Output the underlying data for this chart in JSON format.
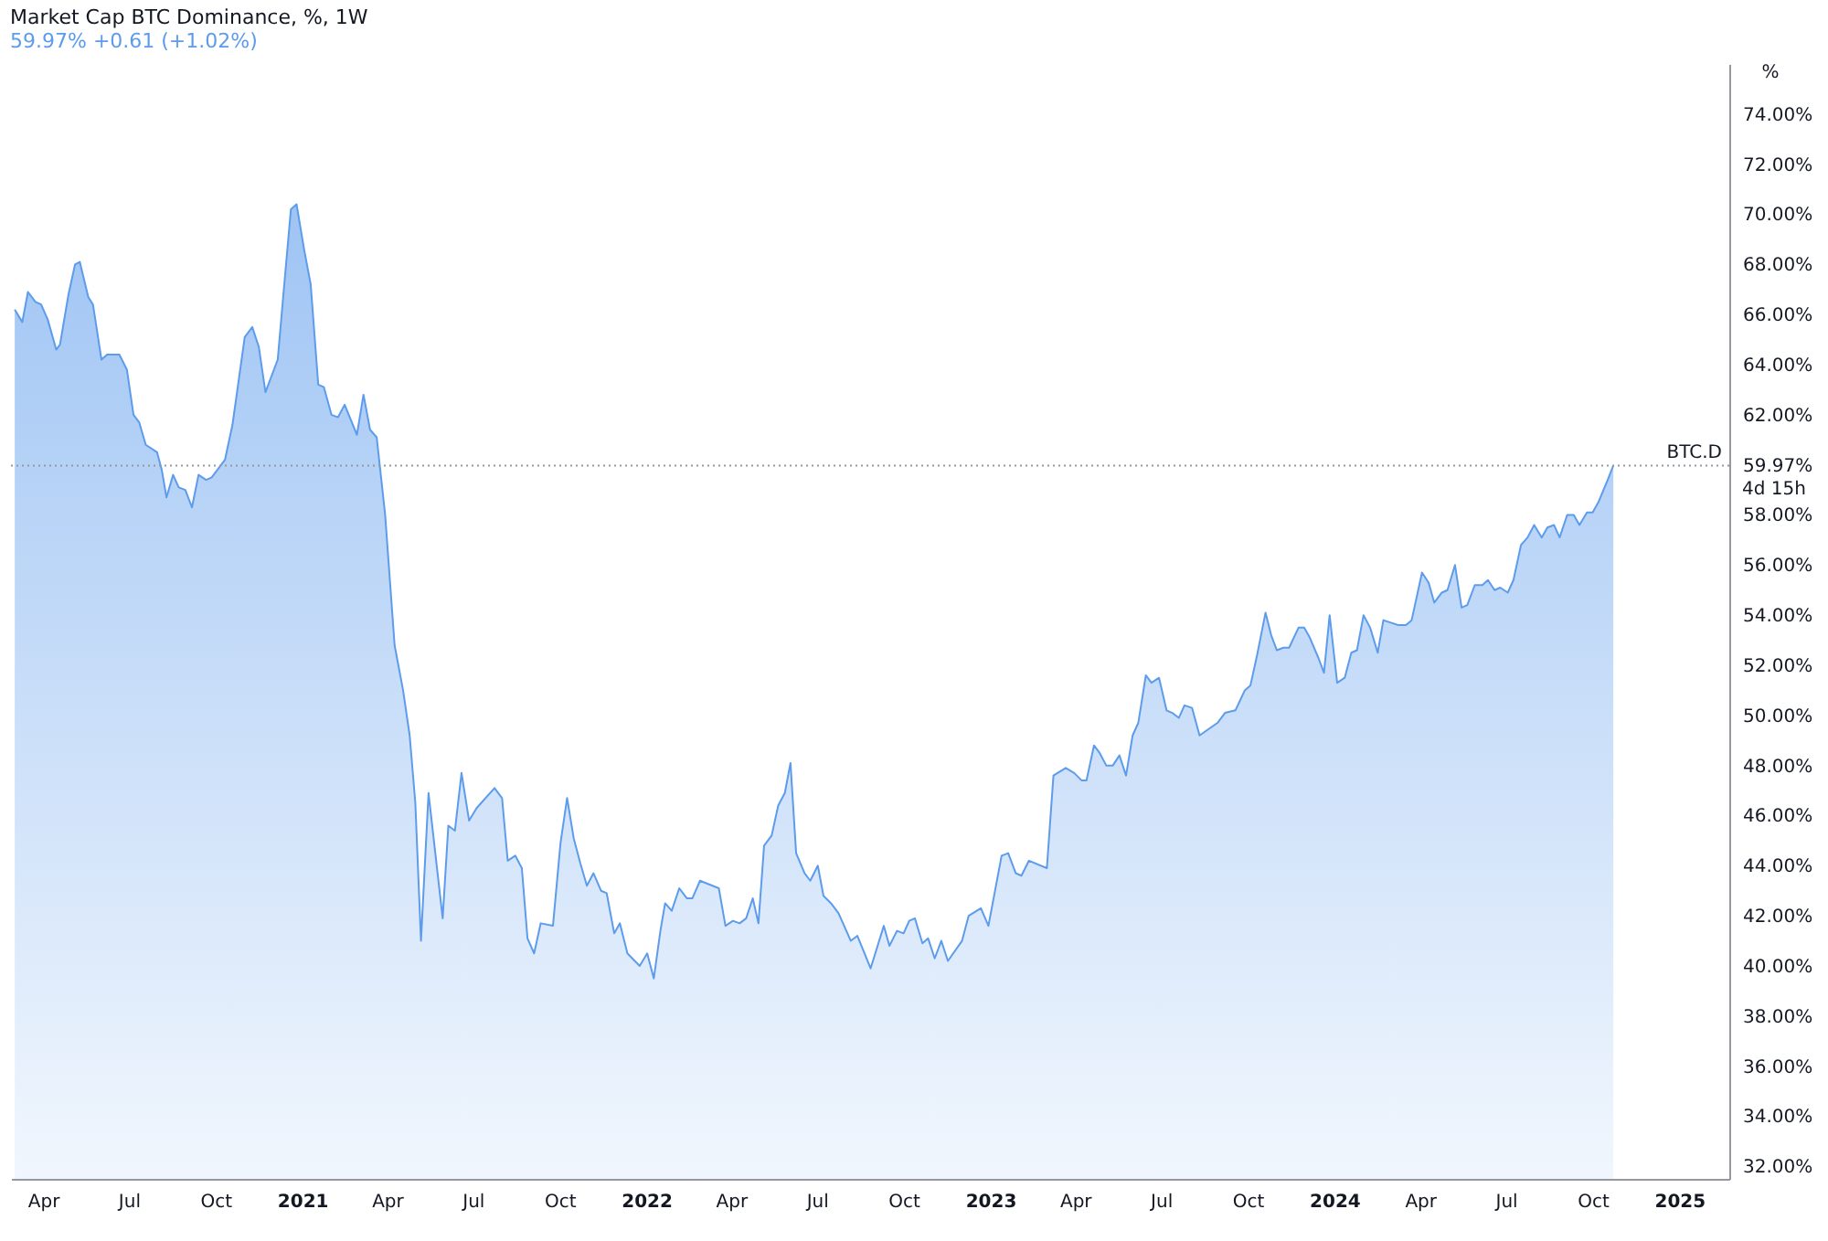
{
  "chart_data": {
    "type": "area",
    "title": "Market Cap BTC Dominance, %, 1W",
    "subtitle": "59.97% +0.61 (+1.02%)",
    "ylabel": "%",
    "x": [
      "2020-03-02",
      "2020-03-10",
      "2020-03-16",
      "2020-03-24",
      "2020-03-30",
      "2020-04-06",
      "2020-04-15",
      "2020-04-19",
      "2020-04-28",
      "2020-05-05",
      "2020-05-10",
      "2020-05-19",
      "2020-05-24",
      "2020-06-02",
      "2020-06-08",
      "2020-06-21",
      "2020-06-29",
      "2020-07-06",
      "2020-07-12",
      "2020-07-19",
      "2020-07-31",
      "2020-08-05",
      "2020-08-10",
      "2020-08-17",
      "2020-08-23",
      "2020-08-30",
      "2020-09-06",
      "2020-09-13",
      "2020-09-21",
      "2020-09-27",
      "2020-10-11",
      "2020-10-19",
      "2020-11-01",
      "2020-11-09",
      "2020-11-16",
      "2020-11-23",
      "2020-12-06",
      "2020-12-12",
      "2020-12-20",
      "2020-12-26",
      "2021-01-03",
      "2021-01-10",
      "2021-01-18",
      "2021-01-24",
      "2021-02-01",
      "2021-02-08",
      "2021-02-15",
      "2021-02-28",
      "2021-03-07",
      "2021-03-14",
      "2021-03-21",
      "2021-03-30",
      "2021-04-09",
      "2021-04-18",
      "2021-04-25",
      "2021-05-01",
      "2021-05-07",
      "2021-05-15",
      "2021-05-30",
      "2021-06-05",
      "2021-06-12",
      "2021-06-19",
      "2021-06-27",
      "2021-07-05",
      "2021-07-24",
      "2021-08-01",
      "2021-08-07",
      "2021-08-15",
      "2021-08-22",
      "2021-08-28",
      "2021-09-04",
      "2021-09-11",
      "2021-09-24",
      "2021-10-02",
      "2021-10-09",
      "2021-10-16",
      "2021-10-23",
      "2021-10-30",
      "2021-11-06",
      "2021-11-14",
      "2021-11-20",
      "2021-11-28",
      "2021-12-04",
      "2021-12-12",
      "2021-12-25",
      "2022-01-02",
      "2022-01-09",
      "2022-01-16",
      "2022-01-21",
      "2022-01-28",
      "2022-02-05",
      "2022-02-13",
      "2022-02-19",
      "2022-02-27",
      "2022-03-19",
      "2022-03-26",
      "2022-04-03",
      "2022-04-10",
      "2022-04-17",
      "2022-04-24",
      "2022-04-30",
      "2022-05-06",
      "2022-05-14",
      "2022-05-21",
      "2022-05-28",
      "2022-06-03",
      "2022-06-09",
      "2022-06-18",
      "2022-06-24",
      "2022-07-02",
      "2022-07-08",
      "2022-07-16",
      "2022-07-24",
      "2022-08-06",
      "2022-08-13",
      "2022-08-27",
      "2022-09-10",
      "2022-09-16",
      "2022-09-24",
      "2022-10-01",
      "2022-10-07",
      "2022-10-13",
      "2022-10-21",
      "2022-10-27",
      "2022-11-03",
      "2022-11-10",
      "2022-11-17",
      "2022-12-02",
      "2022-12-09",
      "2022-12-22",
      "2022-12-30",
      "2023-01-13",
      "2023-01-20",
      "2023-01-28",
      "2023-02-03",
      "2023-02-11",
      "2023-03-02",
      "2023-03-09",
      "2023-03-22",
      "2023-03-31",
      "2023-04-08",
      "2023-04-13",
      "2023-04-21",
      "2023-04-27",
      "2023-05-04",
      "2023-05-11",
      "2023-05-18",
      "2023-05-25",
      "2023-06-01",
      "2023-06-07",
      "2023-06-15",
      "2023-06-21",
      "2023-06-29",
      "2023-07-07",
      "2023-07-13",
      "2023-07-20",
      "2023-07-26",
      "2023-08-03",
      "2023-08-11",
      "2023-08-30",
      "2023-09-07",
      "2023-09-18",
      "2023-09-28",
      "2023-10-04",
      "2023-10-11",
      "2023-10-20",
      "2023-10-26",
      "2023-11-01",
      "2023-11-08",
      "2023-11-14",
      "2023-11-24",
      "2023-11-30",
      "2023-12-06",
      "2023-12-15",
      "2023-12-21",
      "2023-12-27",
      "2024-01-04",
      "2024-01-12",
      "2024-01-19",
      "2024-01-25",
      "2024-02-01",
      "2024-02-08",
      "2024-02-16",
      "2024-02-22",
      "2024-03-01",
      "2024-03-09",
      "2024-03-17",
      "2024-03-23",
      "2024-04-03",
      "2024-04-10",
      "2024-04-16",
      "2024-04-24",
      "2024-04-30",
      "2024-05-08",
      "2024-05-15",
      "2024-05-21",
      "2024-05-29",
      "2024-06-06",
      "2024-06-12",
      "2024-06-19",
      "2024-06-25",
      "2024-07-03",
      "2024-07-09",
      "2024-07-17",
      "2024-07-24",
      "2024-07-31",
      "2024-08-08",
      "2024-08-14",
      "2024-08-21",
      "2024-08-27",
      "2024-09-04",
      "2024-09-11",
      "2024-09-17",
      "2024-09-25",
      "2024-10-01",
      "2024-10-07",
      "2024-10-17",
      "2024-10-23"
    ],
    "series": [
      {
        "color": "#5d9cec",
        "values": [
          66.2,
          65.7,
          66.9,
          66.5,
          66.4,
          65.8,
          64.6,
          64.8,
          66.8,
          68.0,
          68.1,
          66.7,
          66.4,
          64.2,
          64.4,
          64.4,
          63.8,
          62.0,
          61.7,
          60.8,
          60.5,
          59.8,
          58.7,
          59.6,
          59.1,
          59.0,
          58.3,
          59.6,
          59.4,
          59.5,
          60.2,
          61.6,
          65.1,
          65.5,
          64.7,
          62.9,
          64.2,
          66.8,
          70.2,
          70.4,
          68.6,
          67.2,
          63.2,
          63.1,
          62.0,
          61.9,
          62.4,
          61.2,
          62.8,
          61.4,
          61.1,
          58.0,
          52.8,
          51.0,
          49.2,
          46.5,
          41.0,
          46.9,
          41.9,
          45.6,
          45.4,
          47.7,
          45.8,
          46.3,
          47.1,
          46.7,
          44.2,
          44.4,
          43.9,
          41.1,
          40.5,
          41.7,
          41.6,
          44.9,
          46.7,
          45.1,
          44.1,
          43.2,
          43.7,
          43.0,
          42.9,
          41.3,
          41.7,
          40.5,
          40.0,
          40.5,
          39.5,
          41.4,
          42.5,
          42.2,
          43.1,
          42.7,
          42.7,
          43.4,
          43.1,
          41.6,
          41.8,
          41.7,
          41.9,
          42.7,
          41.7,
          44.8,
          45.2,
          46.4,
          46.9,
          48.1,
          44.5,
          43.7,
          43.4,
          44.0,
          42.8,
          42.5,
          42.1,
          41.0,
          41.2,
          39.9,
          41.6,
          40.8,
          41.4,
          41.3,
          41.8,
          41.9,
          40.9,
          41.1,
          40.3,
          41.0,
          40.2,
          41.0,
          42.0,
          42.3,
          41.6,
          44.4,
          44.5,
          43.7,
          43.6,
          44.2,
          43.9,
          47.6,
          47.9,
          47.7,
          47.4,
          47.4,
          48.8,
          48.5,
          48.0,
          48.0,
          48.4,
          47.6,
          49.2,
          49.7,
          51.6,
          51.3,
          51.5,
          50.2,
          50.1,
          49.9,
          50.4,
          50.3,
          49.2,
          49.7,
          50.1,
          50.2,
          51.0,
          51.2,
          52.4,
          54.1,
          53.2,
          52.6,
          52.7,
          52.7,
          53.5,
          53.5,
          53.1,
          52.3,
          51.7,
          54.0,
          51.3,
          51.5,
          52.5,
          52.6,
          54.0,
          53.5,
          52.5,
          53.8,
          53.7,
          53.6,
          53.6,
          53.8,
          55.7,
          55.3,
          54.5,
          54.9,
          55.0,
          56.0,
          54.3,
          54.4,
          55.2,
          55.2,
          55.4,
          55.0,
          55.1,
          54.9,
          55.4,
          56.8,
          57.1,
          57.6,
          57.1,
          57.5,
          57.6,
          57.1,
          58.0,
          58.0,
          57.6,
          58.1,
          58.1,
          58.5,
          59.4,
          59.97
        ]
      }
    ],
    "xlim": [
      "2020-02-27",
      "2025-02-23"
    ],
    "xticks": [
      {
        "value": "2020-04-01",
        "label": "Apr"
      },
      {
        "value": "2020-07-01",
        "label": "Jul"
      },
      {
        "value": "2020-10-01",
        "label": "Oct"
      },
      {
        "value": "2021-01-01",
        "label": "2021"
      },
      {
        "value": "2021-04-01",
        "label": "Apr"
      },
      {
        "value": "2021-07-01",
        "label": "Jul"
      },
      {
        "value": "2021-10-01",
        "label": "Oct"
      },
      {
        "value": "2022-01-01",
        "label": "2022"
      },
      {
        "value": "2022-04-01",
        "label": "Apr"
      },
      {
        "value": "2022-07-01",
        "label": "Jul"
      },
      {
        "value": "2022-10-01",
        "label": "Oct"
      },
      {
        "value": "2023-01-01",
        "label": "2023"
      },
      {
        "value": "2023-04-01",
        "label": "Apr"
      },
      {
        "value": "2023-07-01",
        "label": "Jul"
      },
      {
        "value": "2023-10-01",
        "label": "Oct"
      },
      {
        "value": "2024-01-01",
        "label": "2024"
      },
      {
        "value": "2024-04-01",
        "label": "Apr"
      },
      {
        "value": "2024-07-01",
        "label": "Jul"
      },
      {
        "value": "2024-10-01",
        "label": "Oct"
      },
      {
        "value": "2025-01-01",
        "label": "2025"
      }
    ],
    "ylim": [
      31.5,
      76
    ],
    "yticks": [
      {
        "value": 32,
        "label": "32.00%"
      },
      {
        "value": 34,
        "label": "34.00%"
      },
      {
        "value": 36,
        "label": "36.00%"
      },
      {
        "value": 38,
        "label": "38.00%"
      },
      {
        "value": 40,
        "label": "40.00%"
      },
      {
        "value": 42,
        "label": "42.00%"
      },
      {
        "value": 44,
        "label": "44.00%"
      },
      {
        "value": 46,
        "label": "46.00%"
      },
      {
        "value": 48,
        "label": "48.00%"
      },
      {
        "value": 50,
        "label": "50.00%"
      },
      {
        "value": 52,
        "label": "52.00%"
      },
      {
        "value": 54,
        "label": "54.00%"
      },
      {
        "value": 56,
        "label": "56.00%"
      },
      {
        "value": 58,
        "label": "58.00%"
      },
      {
        "value": 59.97,
        "label": "59.97%"
      },
      {
        "value": 62,
        "label": "62.00%"
      },
      {
        "value": 64,
        "label": "64.00%"
      },
      {
        "value": 66,
        "label": "66.00%"
      },
      {
        "value": 68,
        "label": "68.00%"
      },
      {
        "value": 70,
        "label": "70.00%"
      },
      {
        "value": 72,
        "label": "72.00%"
      },
      {
        "value": 74,
        "label": "74.00%"
      }
    ],
    "ref_lines": [
      {
        "axis": "y",
        "value": 59.97,
        "label": "BTC.D",
        "line_style": "dotted",
        "color": "#9598a1"
      }
    ],
    "annotations": [
      "4d 15h"
    ]
  }
}
